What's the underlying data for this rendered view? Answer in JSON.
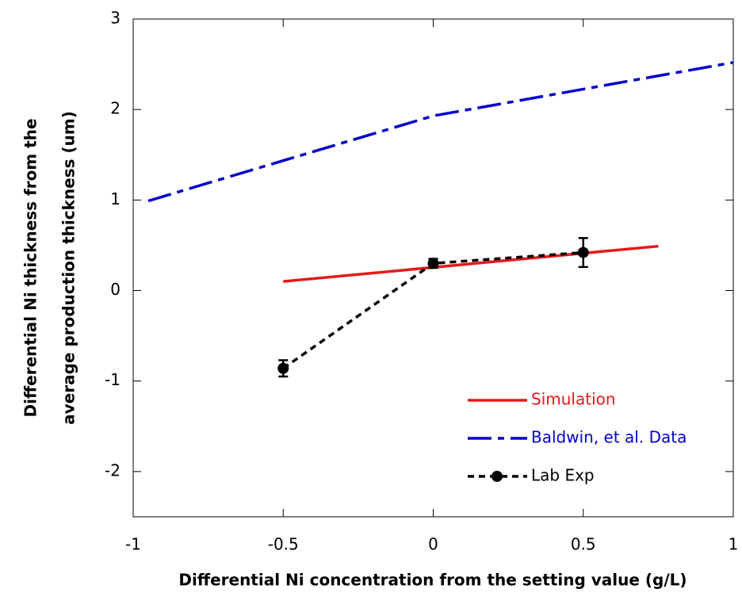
{
  "chart_data": {
    "type": "line",
    "xlabel": "Differential Ni concentration from the setting value (g/L)",
    "ylabel": [
      "Differential Ni thickness from the",
      "average production thickness (um)"
    ],
    "xlim": [
      -1,
      1
    ],
    "ylim": [
      -2.5,
      3
    ],
    "xticks": [
      -1,
      -0.5,
      0,
      0.5,
      1
    ],
    "yticks": [
      -2,
      -1,
      0,
      1,
      2,
      3
    ],
    "legend": "lower right",
    "series": [
      {
        "name": "Simulation",
        "color": "#e41a1c",
        "style": "solid",
        "x": [
          -0.5,
          0.75
        ],
        "values": [
          0.1,
          0.49
        ]
      },
      {
        "name": "Baldwin, et al. Data",
        "color": "#0000cc",
        "style": "dashdot",
        "x": [
          -0.95,
          0,
          1
        ],
        "values": [
          0.99,
          1.93,
          2.52
        ]
      },
      {
        "name": "Lab Exp",
        "color": "#000000",
        "style": "dashed",
        "marker": "circle",
        "x": [
          -0.5,
          0,
          0.5
        ],
        "values": [
          -0.86,
          0.3,
          0.42
        ],
        "errors": [
          0.09,
          0.05,
          0.16
        ]
      }
    ]
  }
}
